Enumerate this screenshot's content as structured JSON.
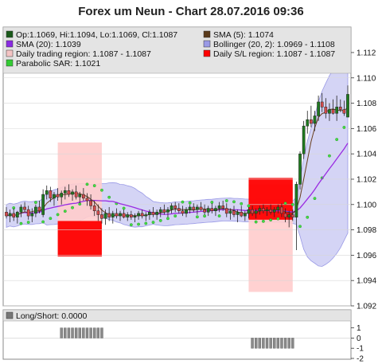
{
  "chart_data": {
    "type": "candlestick",
    "title": "Forex um Neun - Chart 28.07.2016 09:36",
    "ylim": [
      1.092,
      1.1125
    ],
    "y_ticks": [
      "1.092",
      "1.094",
      "1.096",
      "1.098",
      "1.100",
      "1.102",
      "1.104",
      "1.106",
      "1.108",
      "1.110",
      "1.112"
    ],
    "legend": [
      {
        "key": "ohlc",
        "text": "Op:1.1069, Hi:1.1094, Lo:1.1069, Cl:1.1087",
        "color": "#1a5a1a"
      },
      {
        "key": "sma5",
        "text": "SMA (5): 1.1074",
        "color": "#5a3a1a"
      },
      {
        "key": "sma20",
        "text": "SMA (20): 1.1039",
        "color": "#8a2be2"
      },
      {
        "key": "boll",
        "text": "Bollinger (20, 2): 1.0969 - 1.1108",
        "color": "#9a9ae6"
      },
      {
        "key": "dtr",
        "text": "Daily trading region: 1.1087 - 1.1087",
        "color": "#f4c4c4"
      },
      {
        "key": "dsl",
        "text": "Daily S/L region: 1.1087 - 1.1087",
        "color": "#ff0000"
      },
      {
        "key": "sar",
        "text": "Parabolic SAR: 1.1021",
        "color": "#33cc33"
      }
    ],
    "regions": [
      {
        "kind": "trading",
        "bar_from": 14,
        "bar_to": 26,
        "y_from": 1.0959,
        "y_to": 1.1049,
        "color": "#ffcccc"
      },
      {
        "kind": "sl",
        "bar_from": 14,
        "bar_to": 26,
        "y_from": 1.0959,
        "y_to": 1.0987,
        "color": "#ff0000"
      },
      {
        "kind": "trading",
        "bar_from": 66,
        "bar_to": 78,
        "y_from": 1.0931,
        "y_to": 1.1016,
        "color": "#ffcccc"
      },
      {
        "kind": "sl",
        "bar_from": 66,
        "bar_to": 78,
        "y_from": 1.0988,
        "y_to": 1.1021,
        "color": "#ff0000"
      }
    ],
    "candles": [
      {
        "o": 1.0994,
        "h": 1.0998,
        "l": 1.0989,
        "c": 1.0991
      },
      {
        "o": 1.0991,
        "h": 1.0996,
        "l": 1.0986,
        "c": 1.0993
      },
      {
        "o": 1.0993,
        "h": 1.0997,
        "l": 1.0987,
        "c": 1.099
      },
      {
        "o": 1.099,
        "h": 1.0995,
        "l": 1.0985,
        "c": 1.0994
      },
      {
        "o": 1.0994,
        "h": 1.1,
        "l": 1.099,
        "c": 1.0998
      },
      {
        "o": 1.0998,
        "h": 1.1002,
        "l": 1.0994,
        "c": 1.0996
      },
      {
        "o": 1.0996,
        "h": 1.0999,
        "l": 1.0988,
        "c": 1.0991
      },
      {
        "o": 1.0991,
        "h": 1.0997,
        "l": 1.0986,
        "c": 1.0993
      },
      {
        "o": 1.0993,
        "h": 1.1,
        "l": 1.099,
        "c": 1.0998
      },
      {
        "o": 1.0998,
        "h": 1.1003,
        "l": 1.0993,
        "c": 1.0995
      },
      {
        "o": 1.0992,
        "h": 1.1012,
        "l": 1.099,
        "c": 1.1008
      },
      {
        "o": 1.1008,
        "h": 1.1015,
        "l": 1.1004,
        "c": 1.1011
      },
      {
        "o": 1.1011,
        "h": 1.1014,
        "l": 1.1002,
        "c": 1.1005
      },
      {
        "o": 1.1005,
        "h": 1.101,
        "l": 1.0999,
        "c": 1.1008
      },
      {
        "o": 1.1008,
        "h": 1.1013,
        "l": 1.1003,
        "c": 1.1006
      },
      {
        "o": 1.1006,
        "h": 1.1011,
        "l": 1.1,
        "c": 1.1009
      },
      {
        "o": 1.1009,
        "h": 1.1014,
        "l": 1.1004,
        "c": 1.1011
      },
      {
        "o": 1.1011,
        "h": 1.1016,
        "l": 1.1006,
        "c": 1.1008
      },
      {
        "o": 1.1008,
        "h": 1.1012,
        "l": 1.1003,
        "c": 1.101
      },
      {
        "o": 1.101,
        "h": 1.1015,
        "l": 1.1004,
        "c": 1.1006
      },
      {
        "o": 1.1006,
        "h": 1.101,
        "l": 1.1001,
        "c": 1.1008
      },
      {
        "o": 1.1008,
        "h": 1.1013,
        "l": 1.1003,
        "c": 1.1005
      },
      {
        "o": 1.1005,
        "h": 1.1009,
        "l": 1.0999,
        "c": 1.1003
      },
      {
        "o": 1.1003,
        "h": 1.1008,
        "l": 1.0996,
        "c": 1.0999
      },
      {
        "o": 1.0999,
        "h": 1.1003,
        "l": 1.0991,
        "c": 1.0995
      },
      {
        "o": 1.0995,
        "h": 1.1,
        "l": 1.0987,
        "c": 1.0992
      },
      {
        "o": 1.0992,
        "h": 1.0997,
        "l": 1.0985,
        "c": 1.0989
      },
      {
        "o": 1.0989,
        "h": 1.0996,
        "l": 1.0984,
        "c": 1.0993
      },
      {
        "o": 1.0993,
        "h": 1.0998,
        "l": 1.0987,
        "c": 1.099
      },
      {
        "o": 1.099,
        "h": 1.0995,
        "l": 1.0985,
        "c": 1.0993
      },
      {
        "o": 1.0993,
        "h": 1.0997,
        "l": 1.0989,
        "c": 1.0991
      },
      {
        "o": 1.0991,
        "h": 1.0995,
        "l": 1.0987,
        "c": 1.0993
      },
      {
        "o": 1.0993,
        "h": 1.0996,
        "l": 1.0989,
        "c": 1.099
      },
      {
        "o": 1.099,
        "h": 1.0994,
        "l": 1.0987,
        "c": 1.0992
      },
      {
        "o": 1.0992,
        "h": 1.0995,
        "l": 1.0988,
        "c": 1.099
      },
      {
        "o": 1.099,
        "h": 1.0993,
        "l": 1.0986,
        "c": 1.0991
      },
      {
        "o": 1.0991,
        "h": 1.0995,
        "l": 1.0988,
        "c": 1.0993
      },
      {
        "o": 1.0993,
        "h": 1.0996,
        "l": 1.0989,
        "c": 1.0991
      },
      {
        "o": 1.0991,
        "h": 1.0994,
        "l": 1.0987,
        "c": 1.0992
      },
      {
        "o": 1.0992,
        "h": 1.0996,
        "l": 1.0988,
        "c": 1.0994
      },
      {
        "o": 1.0994,
        "h": 1.0998,
        "l": 1.099,
        "c": 1.0992
      },
      {
        "o": 1.0992,
        "h": 1.0996,
        "l": 1.0988,
        "c": 1.0994
      },
      {
        "o": 1.0994,
        "h": 1.0998,
        "l": 1.099,
        "c": 1.0996
      },
      {
        "o": 1.0996,
        "h": 1.1,
        "l": 1.0992,
        "c": 1.0994
      },
      {
        "o": 1.0994,
        "h": 1.0998,
        "l": 1.099,
        "c": 1.0996
      },
      {
        "o": 1.0996,
        "h": 1.1001,
        "l": 1.0993,
        "c": 1.0999
      },
      {
        "o": 1.0999,
        "h": 1.1002,
        "l": 1.0994,
        "c": 1.0997
      },
      {
        "o": 1.0997,
        "h": 1.1001,
        "l": 1.0993,
        "c": 1.0995
      },
      {
        "o": 1.0995,
        "h": 1.0999,
        "l": 1.0991,
        "c": 1.0993
      },
      {
        "o": 1.0993,
        "h": 1.0998,
        "l": 1.099,
        "c": 1.0996
      },
      {
        "o": 1.0996,
        "h": 1.1,
        "l": 1.0993,
        "c": 1.0998
      },
      {
        "o": 1.0998,
        "h": 1.1001,
        "l": 1.0994,
        "c": 1.0996
      },
      {
        "o": 1.0996,
        "h": 1.1,
        "l": 1.0992,
        "c": 1.0998
      },
      {
        "o": 1.0998,
        "h": 1.1002,
        "l": 1.0995,
        "c": 1.0996
      },
      {
        "o": 1.0996,
        "h": 1.1,
        "l": 1.0992,
        "c": 1.0994
      },
      {
        "o": 1.0994,
        "h": 1.0999,
        "l": 1.0991,
        "c": 1.0997
      },
      {
        "o": 1.0997,
        "h": 1.1001,
        "l": 1.0993,
        "c": 1.0995
      },
      {
        "o": 1.0995,
        "h": 1.0999,
        "l": 1.0991,
        "c": 1.0997
      },
      {
        "o": 1.0997,
        "h": 1.1002,
        "l": 1.0994,
        "c": 1.0999
      },
      {
        "o": 1.0999,
        "h": 1.1003,
        "l": 1.0995,
        "c": 1.0997
      },
      {
        "o": 1.0997,
        "h": 1.1001,
        "l": 1.099,
        "c": 1.0993
      },
      {
        "o": 1.0993,
        "h": 1.0997,
        "l": 1.0988,
        "c": 1.0995
      },
      {
        "o": 1.0995,
        "h": 1.0999,
        "l": 1.099,
        "c": 1.0992
      },
      {
        "o": 1.0992,
        "h": 1.0996,
        "l": 1.0986,
        "c": 1.0994
      },
      {
        "o": 1.0994,
        "h": 1.0999,
        "l": 1.099,
        "c": 1.0991
      },
      {
        "o": 1.0991,
        "h": 1.0995,
        "l": 1.0987,
        "c": 1.0993
      },
      {
        "o": 1.0993,
        "h": 1.0998,
        "l": 1.0989,
        "c": 1.0996
      },
      {
        "o": 1.0996,
        "h": 1.0999,
        "l": 1.0991,
        "c": 1.0993
      },
      {
        "o": 1.0993,
        "h": 1.0997,
        "l": 1.0989,
        "c": 1.0995
      },
      {
        "o": 1.0995,
        "h": 1.0999,
        "l": 1.0992,
        "c": 1.0997
      },
      {
        "o": 1.0997,
        "h": 1.1,
        "l": 1.0993,
        "c": 1.0995
      },
      {
        "o": 1.0995,
        "h": 1.0998,
        "l": 1.0991,
        "c": 1.0996
      },
      {
        "o": 1.0996,
        "h": 1.1,
        "l": 1.0992,
        "c": 1.0994
      },
      {
        "o": 1.0994,
        "h": 1.0998,
        "l": 1.099,
        "c": 1.0996
      },
      {
        "o": 1.0996,
        "h": 1.1,
        "l": 1.0993,
        "c": 1.0998
      },
      {
        "o": 1.0998,
        "h": 1.1001,
        "l": 1.099,
        "c": 1.0993
      },
      {
        "o": 1.0993,
        "h": 1.0997,
        "l": 1.0986,
        "c": 1.099
      },
      {
        "o": 1.099,
        "h": 1.0995,
        "l": 1.0982,
        "c": 1.0992
      },
      {
        "o": 1.0992,
        "h": 1.0996,
        "l": 1.0987,
        "c": 1.099
      },
      {
        "o": 1.099,
        "h": 1.1018,
        "l": 1.0964,
        "c": 1.1016
      },
      {
        "o": 1.1016,
        "h": 1.1042,
        "l": 1.1012,
        "c": 1.104
      },
      {
        "o": 1.104,
        "h": 1.1066,
        "l": 1.1036,
        "c": 1.1062
      },
      {
        "o": 1.1062,
        "h": 1.1074,
        "l": 1.1056,
        "c": 1.1067
      },
      {
        "o": 1.1067,
        "h": 1.1078,
        "l": 1.1061,
        "c": 1.1064
      },
      {
        "o": 1.1064,
        "h": 1.1074,
        "l": 1.1058,
        "c": 1.107
      },
      {
        "o": 1.107,
        "h": 1.1086,
        "l": 1.1066,
        "c": 1.1081
      },
      {
        "o": 1.1081,
        "h": 1.1088,
        "l": 1.1073,
        "c": 1.1077
      },
      {
        "o": 1.1077,
        "h": 1.1084,
        "l": 1.1068,
        "c": 1.1072
      },
      {
        "o": 1.1072,
        "h": 1.108,
        "l": 1.1066,
        "c": 1.1075
      },
      {
        "o": 1.1075,
        "h": 1.1083,
        "l": 1.1071,
        "c": 1.1072
      },
      {
        "o": 1.1072,
        "h": 1.1086,
        "l": 1.1066,
        "c": 1.1077
      },
      {
        "o": 1.1077,
        "h": 1.1083,
        "l": 1.1073,
        "c": 1.1075
      },
      {
        "o": 1.1075,
        "h": 1.1082,
        "l": 1.107,
        "c": 1.1072
      },
      {
        "o": 1.1069,
        "h": 1.1094,
        "l": 1.1069,
        "c": 1.1087
      }
    ],
    "sub_chart": {
      "label": "Long/Short: 0.0000",
      "y_ticks": [
        "-2",
        "-1",
        "0",
        "1"
      ],
      "ylim": [
        -2,
        1.6
      ],
      "segments": [
        {
          "bar_from": 15,
          "bar_to": 26,
          "value": 1
        },
        {
          "bar_from": 67,
          "bar_to": 78,
          "value": -1
        }
      ]
    }
  }
}
